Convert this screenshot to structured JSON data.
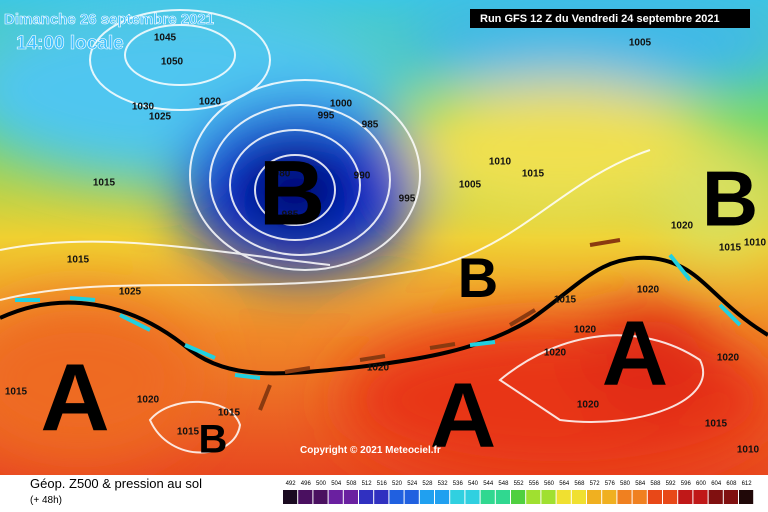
{
  "header": {
    "date": "Dimanche 26 septembre 2021",
    "time": "14:00 locale",
    "run": "Run GFS 12 Z du Vendredi 24 septembre 2021"
  },
  "copyright": "Copyright © 2021 Meteociel.fr",
  "legend": {
    "title": "Géop. Z500 & pression au sol",
    "subtitle": "(+ 48h)",
    "scale": [
      "492",
      "496",
      "500",
      "504",
      "508",
      "512",
      "516",
      "520",
      "524",
      "528",
      "532",
      "536",
      "540",
      "544",
      "548",
      "552",
      "556",
      "560",
      "564",
      "568",
      "572",
      "576",
      "580",
      "584",
      "588",
      "592",
      "596",
      "600",
      "604",
      "608",
      "612"
    ]
  },
  "centers": [
    "B",
    "B",
    "B",
    "B",
    "A",
    "A",
    "A"
  ],
  "isobar_labels": [
    "1045",
    "1050",
    "1030",
    "1025",
    "1020",
    "1000",
    "995",
    "985",
    "990",
    "980",
    "985",
    "995",
    "1005",
    "1010",
    "1015",
    "1005",
    "1015",
    "1015",
    "1025",
    "1020",
    "1015",
    "1010",
    "1015",
    "1020",
    "1020",
    "1020",
    "1020",
    "1020",
    "1020",
    "1015",
    "1015",
    "1015",
    "1010",
    "1015",
    "1020"
  ]
}
